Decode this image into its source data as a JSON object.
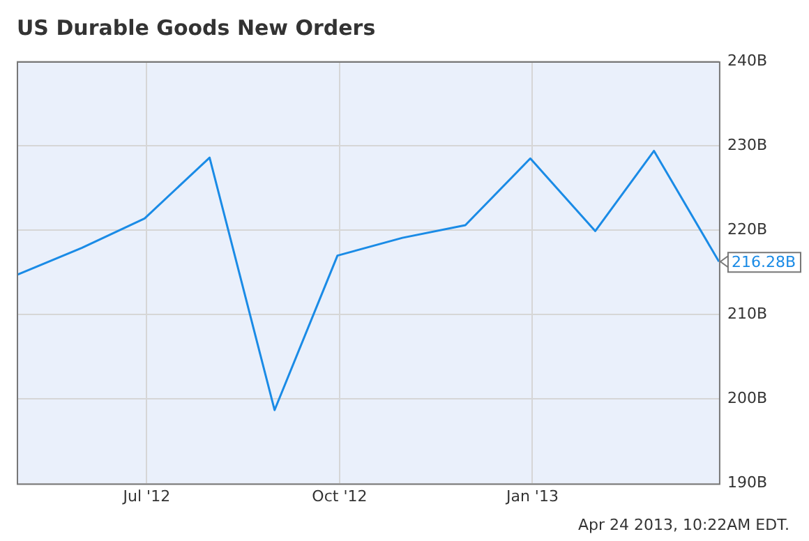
{
  "chart_data": {
    "type": "line",
    "title": "US Durable Goods New Orders",
    "x": [
      "2012-04-30",
      "2012-05-31",
      "2012-06-30",
      "2012-07-31",
      "2012-08-31",
      "2012-09-30",
      "2012-10-31",
      "2012-11-30",
      "2012-12-31",
      "2013-01-31",
      "2013-02-28",
      "2013-03-31"
    ],
    "series": [
      {
        "color": "#1a8be6",
        "values": [
          214.7,
          217.9,
          221.4,
          228.6,
          198.7,
          217.0,
          219.1,
          220.6,
          228.5,
          219.9,
          229.4,
          216.28
        ],
        "value_labels": [
          null,
          null,
          null,
          null,
          null,
          null,
          null,
          null,
          null,
          null,
          null,
          "216.28B"
        ]
      }
    ],
    "xlim": [
      "2012-04-30",
      "2013-03-31"
    ],
    "xticks": [
      {
        "value": "2012-07-01",
        "label": "Jul '12"
      },
      {
        "value": "2012-10-01",
        "label": "Oct '12"
      },
      {
        "value": "2013-01-01",
        "label": "Jan '13"
      }
    ],
    "ylim": [
      190,
      240
    ],
    "yticks": [
      {
        "value": 190,
        "label": "190B"
      },
      {
        "value": 200,
        "label": "200B"
      },
      {
        "value": 210,
        "label": "210B"
      },
      {
        "value": 220,
        "label": "220B"
      },
      {
        "value": 230,
        "label": "230B"
      },
      {
        "value": 240,
        "label": "240B"
      }
    ],
    "grid": true,
    "legend": false,
    "marker": "none",
    "line_style": "solid",
    "annotations": [
      "Apr 24 2013, 10:22AM EDT."
    ]
  }
}
